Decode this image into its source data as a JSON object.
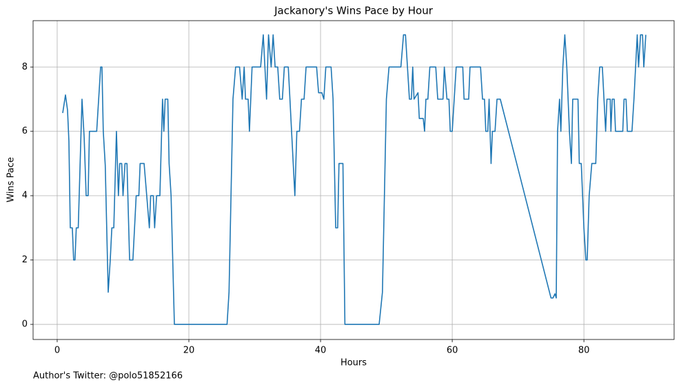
{
  "chart_data": {
    "type": "line",
    "title": "Jackanory's Wins Pace by Hour",
    "x_label": "Hours",
    "y_label": "Wins Pace",
    "footnote": "Author's Twitter: @polo51852166",
    "grid": true,
    "xlim": [
      -3.66,
      93.7
    ],
    "ylim": [
      -0.47,
      9.44
    ],
    "xticks": [
      0,
      20,
      40,
      60,
      80
    ],
    "yticks": [
      0,
      2,
      4,
      6,
      8
    ],
    "x": [
      0.84,
      1.26,
      1.57,
      1.78,
      1.99,
      2.3,
      2.5,
      2.7,
      2.9,
      3.2,
      3.77,
      4.1,
      4.4,
      4.7,
      4.9,
      6,
      6.6,
      6.8,
      7,
      7.3,
      7.75,
      8.06,
      8.3,
      8.6,
      9,
      9.3,
      9.5,
      9.8,
      10,
      10.3,
      10.6,
      11,
      11.5,
      12,
      12.4,
      12.6,
      13.2,
      13.6,
      14,
      14.2,
      14.6,
      14.8,
      15.1,
      15.6,
      16,
      16.2,
      16.4,
      16.8,
      17,
      17.3,
      17.8,
      25.8,
      26.1,
      26.7,
      27.1,
      27.7,
      28.1,
      28.4,
      28.6,
      29,
      29.2,
      29.6,
      30.9,
      31.3,
      31.8,
      32.1,
      32.5,
      32.8,
      33.1,
      33.5,
      33.8,
      34.2,
      34.5,
      35.1,
      36.1,
      36.4,
      36.8,
      37.1,
      37.5,
      37.8,
      39.4,
      39.7,
      40.2,
      40.5,
      40.8,
      41.6,
      41.9,
      42.3,
      42.6,
      42.8,
      43.4,
      43.7,
      48.9,
      49.4,
      50,
      50.4,
      52.2,
      52.6,
      52.9,
      53.2,
      53.5,
      53.8,
      54,
      54.2,
      54.8,
      55,
      55.6,
      55.8,
      56,
      56.3,
      56.6,
      57.5,
      57.8,
      58.6,
      58.8,
      59.2,
      59.5,
      59.7,
      60,
      60.3,
      60.6,
      61.6,
      61.8,
      62.5,
      62.7,
      64.3,
      64.6,
      64.9,
      65.1,
      65.4,
      65.6,
      65.9,
      66.1,
      66.5,
      66.8,
      67.3,
      75,
      75.3,
      75.6,
      75.8,
      76,
      76.3,
      76.5,
      76.8,
      77.1,
      77.4,
      77.8,
      78.1,
      78.3,
      79.1,
      79.3,
      79.6,
      80,
      80.3,
      80.5,
      80.8,
      81.2,
      81.8,
      82.1,
      82.4,
      82.8,
      83.3,
      83.5,
      84,
      84.1,
      84.3,
      84.6,
      84.8,
      85.9,
      86.1,
      86.4,
      86.6,
      87.3,
      87.6,
      88.1,
      88.3,
      88.6,
      88.9,
      89.1,
      89.4
    ],
    "series": [
      {
        "color": "#1f77b4",
        "values": [
          6.57,
          7.13,
          6.66,
          5.7,
          3,
          3,
          2,
          2,
          3,
          3,
          7,
          5.8,
          4,
          4,
          6,
          6,
          8,
          8,
          6,
          4.95,
          1,
          2,
          3,
          3,
          6,
          4,
          5,
          5,
          4,
          5,
          5,
          2,
          2,
          4,
          4,
          5,
          5,
          4,
          3,
          4,
          4,
          3,
          4,
          4,
          7,
          6,
          7,
          7,
          5,
          4,
          0,
          0,
          1,
          7,
          8,
          8,
          7,
          8,
          7,
          7,
          6,
          8,
          8,
          9,
          7,
          9,
          8,
          9,
          8,
          8,
          7,
          7,
          8,
          8,
          4,
          6,
          6,
          7,
          7,
          8,
          8,
          7.2,
          7.2,
          7,
          8,
          8,
          7,
          3,
          3,
          5,
          5,
          0,
          0,
          1,
          7,
          8,
          8,
          9,
          9,
          8,
          7,
          7,
          8,
          7,
          7.2,
          6.4,
          6.4,
          6,
          7,
          7,
          8,
          8,
          7,
          7,
          8,
          7,
          7,
          6,
          6,
          7,
          8,
          8,
          7,
          7,
          8,
          8,
          7,
          7,
          6,
          6,
          7,
          5,
          6,
          6,
          7,
          7,
          0.82,
          0.82,
          0.95,
          0.82,
          6,
          7,
          6,
          8,
          9,
          8,
          6,
          5,
          7,
          7,
          5,
          5,
          3,
          2,
          2,
          4,
          5,
          5,
          7,
          8,
          8,
          6,
          7,
          7,
          6,
          7,
          7,
          6,
          6,
          7,
          7,
          6,
          6,
          7,
          9,
          8,
          9,
          9,
          8,
          9
        ]
      }
    ]
  }
}
